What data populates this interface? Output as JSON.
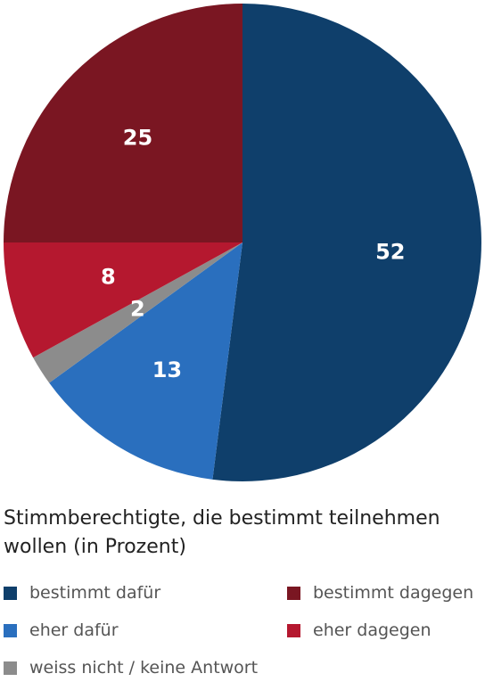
{
  "chart_data": {
    "type": "pie",
    "title": "Stimmberechtigte, die bestimmt teilnehmen wollen (in Prozent)",
    "slices": [
      {
        "label": "bestimmt dafür",
        "value": 52,
        "color": "#0f3f6b"
      },
      {
        "label": "eher dafür",
        "value": 13,
        "color": "#2a6fbe"
      },
      {
        "label": "weiss nicht / keine Antwort",
        "value": 2,
        "color": "#8c8c8c"
      },
      {
        "label": "eher dagegen",
        "value": 8,
        "color": "#b5182f"
      },
      {
        "label": "bestimmt dagegen",
        "value": 25,
        "color": "#7a1622"
      }
    ],
    "legend": [
      {
        "label": "bestimmt dafür",
        "color": "#0f3f6b"
      },
      {
        "label": "bestimmt dagegen",
        "color": "#7a1622"
      },
      {
        "label": "eher dafür",
        "color": "#2a6fbe"
      },
      {
        "label": "eher dagegen",
        "color": "#b5182f"
      },
      {
        "label": "weiss nicht / keine Antwort",
        "color": "#8c8c8c"
      }
    ]
  }
}
